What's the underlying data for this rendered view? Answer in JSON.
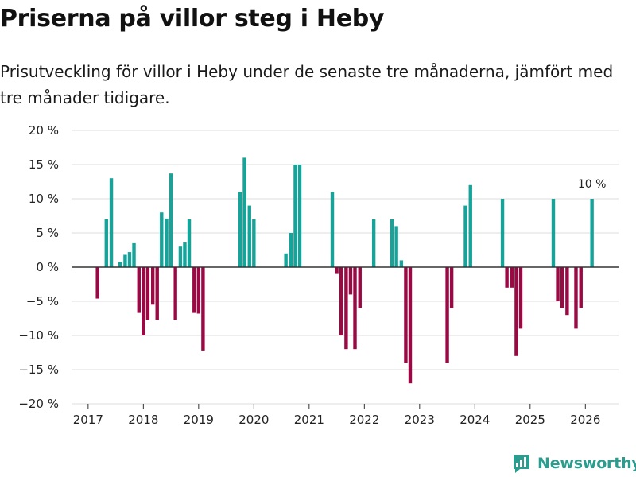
{
  "header": {
    "title": "Priserna på villor steg i Heby",
    "subtitle": "Prisutveckling för villor i Heby under de senaste tre månaderna, jämfört med tre månader tidigare."
  },
  "brand": {
    "name": "Newsworthy"
  },
  "colors": {
    "positive": "#16a39a",
    "negative": "#990a44",
    "grid": "#dddddd",
    "axis": "#333333",
    "brand": "#2a9d8f"
  },
  "chart_data": {
    "type": "bar",
    "title": "Priserna på villor steg i Heby",
    "xlabel": "",
    "ylabel": "",
    "ylim": [
      -20,
      20
    ],
    "xlim": [
      2016.7,
      2026.6
    ],
    "y_ticks": [
      20,
      15,
      10,
      5,
      0,
      -5,
      -10,
      -15,
      -20
    ],
    "y_tick_labels": [
      "20 %",
      "15 %",
      "10 %",
      "5 %",
      "0 %",
      "−5 %",
      "−10 %",
      "−15 %",
      "−20 %"
    ],
    "x_ticks": [
      2017,
      2018,
      2019,
      2020,
      2021,
      2022,
      2023,
      2024,
      2025,
      2026
    ],
    "x_tick_labels": [
      "2017",
      "2018",
      "2019",
      "2020",
      "2021",
      "2022",
      "2023",
      "2024",
      "2025",
      "2026"
    ],
    "grid": true,
    "annotations": [
      {
        "x": 2026.12,
        "y": 10,
        "text": "10 %"
      }
    ],
    "x": [
      2017.17,
      2017.33,
      2017.42,
      2017.58,
      2017.67,
      2017.75,
      2017.83,
      2017.92,
      2018.0,
      2018.08,
      2018.17,
      2018.25,
      2018.33,
      2018.42,
      2018.5,
      2018.58,
      2018.67,
      2018.75,
      2018.83,
      2018.92,
      2019.0,
      2019.08,
      2019.75,
      2019.83,
      2019.92,
      2020.0,
      2020.58,
      2020.67,
      2020.75,
      2020.83,
      2021.42,
      2021.5,
      2021.58,
      2021.67,
      2021.75,
      2021.83,
      2021.92,
      2022.17,
      2022.5,
      2022.58,
      2022.67,
      2022.75,
      2022.83,
      2023.5,
      2023.58,
      2023.83,
      2023.92,
      2024.5,
      2024.58,
      2024.67,
      2024.75,
      2024.83,
      2025.42,
      2025.5,
      2025.58,
      2025.67,
      2025.83,
      2025.92,
      2026.12
    ],
    "values": [
      -4.6,
      7,
      13,
      0.8,
      1.8,
      2.2,
      3.5,
      -6.7,
      -10,
      -7.7,
      -5.5,
      -7.7,
      8,
      7.1,
      13.7,
      -7.7,
      3,
      3.6,
      7,
      -6.7,
      -6.8,
      -12.2,
      11,
      16,
      9,
      7,
      2,
      5,
      15,
      15,
      11,
      -1,
      -10,
      -12,
      -4,
      -12,
      -6,
      7,
      7,
      6,
      1,
      -14,
      -17,
      -14,
      -6,
      9,
      12,
      10,
      -3,
      -3,
      -13,
      -9,
      10,
      -5,
      -6,
      -7,
      -9,
      -6,
      10
    ]
  }
}
